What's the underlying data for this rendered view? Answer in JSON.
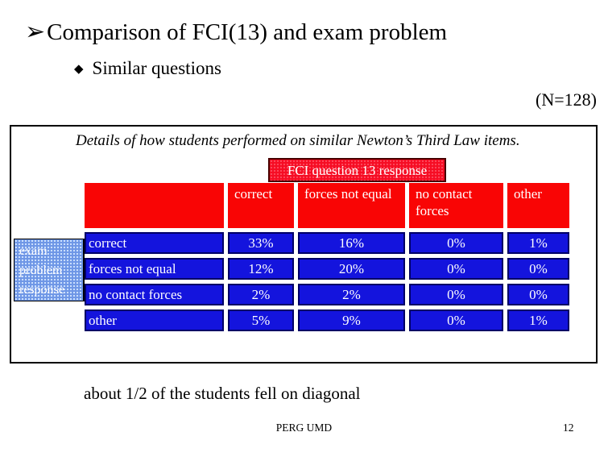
{
  "slide": {
    "title_bullet": "➢",
    "title": "Comparison of FCI(13) and exam problem",
    "sub_bullet": "◆",
    "subtitle": "Similar questions",
    "n_label": "(N=128)",
    "note": "about 1/2 of the students fell on diagonal",
    "footer": "PERG UMD",
    "page_number": "12"
  },
  "chart_data": {
    "type": "table",
    "title": "Details of how students performed on similar Newton’s Third Law items.",
    "column_group_label": "FCI question 13 response",
    "row_group_label": "exam problem response",
    "columns": [
      "correct",
      "forces not\nequal",
      "no contact\nforces",
      "other"
    ],
    "rows": [
      "correct",
      "forces not equal",
      "no contact forces",
      "other"
    ],
    "values": [
      [
        "33%",
        "16%",
        "0%",
        "1%"
      ],
      [
        "12%",
        "20%",
        "0%",
        "0%"
      ],
      [
        "2%",
        "2%",
        "0%",
        "0%"
      ],
      [
        "5%",
        "9%",
        "0%",
        "1%"
      ]
    ]
  },
  "colors": {
    "header_red": "#f90505",
    "fci_box_red": "#f60d24",
    "cell_blue": "#1414dd",
    "cell_border_navy": "#000066",
    "row_group_blue": "#6e96e6"
  }
}
